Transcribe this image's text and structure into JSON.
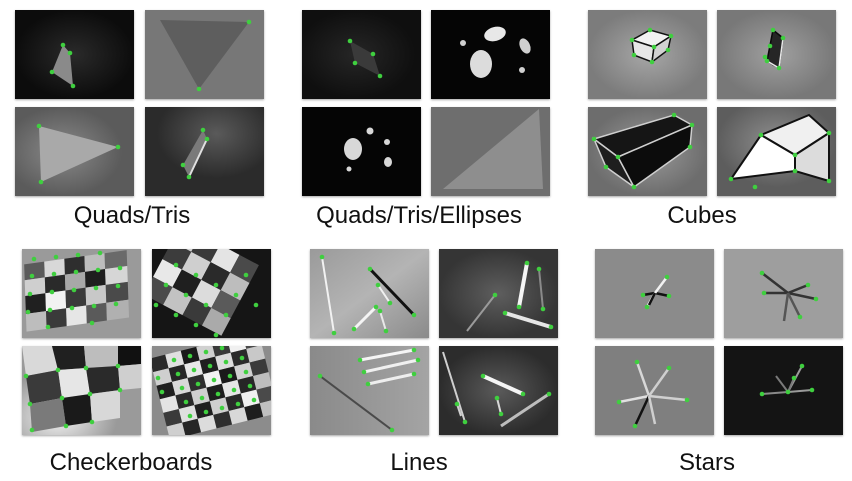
{
  "figure": {
    "groups": [
      {
        "caption": "Quads/Tris",
        "tiles": [
          "quad-dark",
          "triangle-large",
          "triangle-wide",
          "quad-thin"
        ]
      },
      {
        "caption": "Quads/Tris/Ellipses",
        "tiles": [
          "quad-small",
          "ellipses-few",
          "ellipses-many",
          "triangle-corner"
        ]
      },
      {
        "caption": "Cubes",
        "tiles": [
          "cube-small",
          "cube-thin",
          "cube-dark",
          "cube-white"
        ]
      },
      {
        "caption": "Checkerboards",
        "tiles": [
          "checker-warped",
          "checker-rotated",
          "checker-large",
          "checker-small"
        ]
      },
      {
        "caption": "Lines",
        "tiles": [
          "lines-a",
          "lines-b",
          "lines-c",
          "lines-d"
        ]
      },
      {
        "caption": "Stars",
        "tiles": [
          "star-small",
          "star-fan",
          "star-large",
          "star-dark"
        ]
      }
    ],
    "colors": {
      "keypoint": "#3fcf3f",
      "background": "#ffffff",
      "caption": "#111111"
    }
  }
}
